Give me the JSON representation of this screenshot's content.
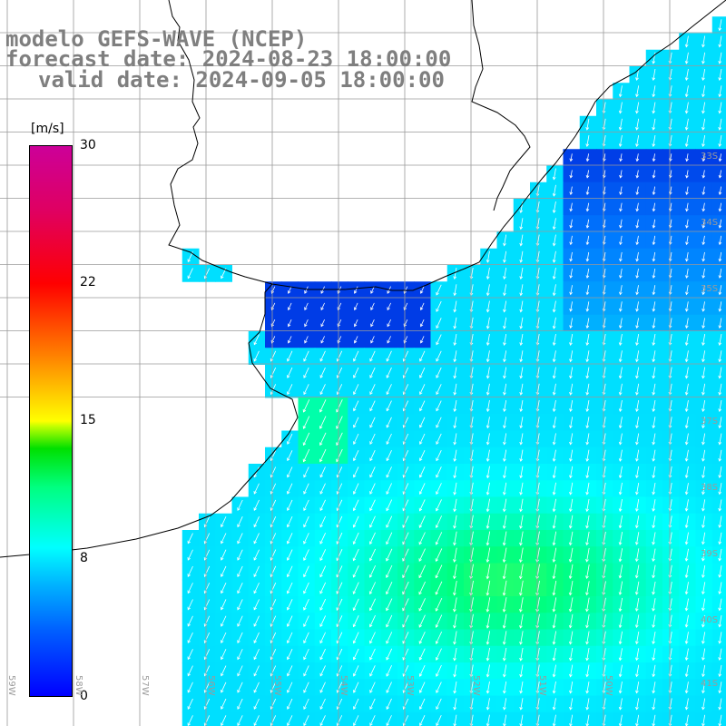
{
  "title": {
    "line1": "modelo GEFS-WAVE (NCEP)",
    "line2": "forecast date: 2024-08-23 18:00:00",
    "line3": "valid date: 2024-09-05 18:00:00"
  },
  "colorbar": {
    "unit": "[m/s]",
    "ticks": [
      "30",
      "22",
      "15",
      "8",
      "0"
    ],
    "tick_values": [
      30,
      22,
      15,
      8,
      0
    ],
    "min": 0,
    "max": 30
  },
  "lat_labels": [
    "33S",
    "34S",
    "35S",
    "37S",
    "38S",
    "39S",
    "40S",
    "41S"
  ],
  "lon_labels": [
    "59W",
    "58W",
    "57W",
    "56W",
    "55W",
    "54W",
    "53W",
    "52W",
    "51W",
    "50W"
  ],
  "colors": {
    "land": "#ffffff",
    "grid": "#9a9a9a",
    "coast": "#000000",
    "arrow": "#ffffff",
    "title": "#7f7f7f"
  }
}
